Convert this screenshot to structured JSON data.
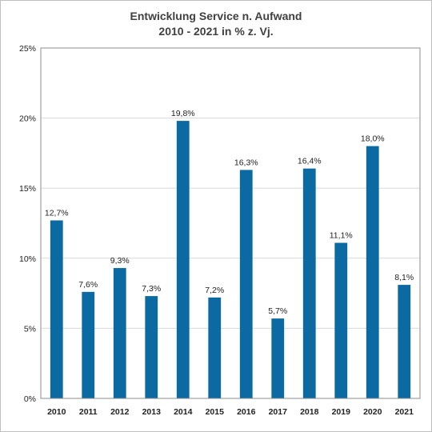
{
  "chart_data": {
    "type": "bar",
    "title_line1": "Entwicklung Service n. Aufwand",
    "title_line2": "2010 - 2021 in % z. Vj.",
    "xlabel": "",
    "ylabel": "",
    "categories": [
      "2010",
      "2011",
      "2012",
      "2013",
      "2014",
      "2015",
      "2016",
      "2017",
      "2018",
      "2019",
      "2020",
      "2021"
    ],
    "values": [
      12.7,
      7.6,
      9.3,
      7.3,
      19.8,
      7.2,
      16.3,
      5.7,
      16.4,
      11.1,
      18.0,
      8.1
    ],
    "data_labels": [
      "12,7%",
      "7,6%",
      "9,3%",
      "7,3%",
      "19,8%",
      "7,2%",
      "16,3%",
      "5,7%",
      "16,4%",
      "11,1%",
      "18,0%",
      "8,1%"
    ],
    "ylim": [
      0,
      25
    ],
    "yticks": [
      0,
      5,
      10,
      15,
      20,
      25
    ],
    "ytick_labels": [
      "0%",
      "5%",
      "10%",
      "15%",
      "20%",
      "25%"
    ],
    "grid": true,
    "legend": "none",
    "bar_color": "#0a6aa1",
    "grid_color": "#d9d9d9"
  }
}
